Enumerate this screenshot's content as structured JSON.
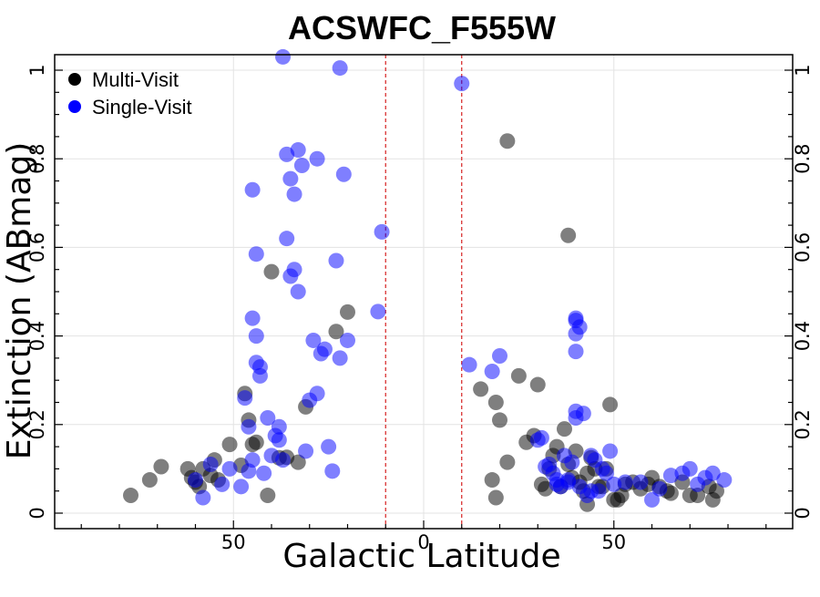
{
  "chart_data": {
    "type": "scatter",
    "title": "ACSWFC_F555W",
    "xlabel": "Galactic Latitude",
    "ylabel": "Extinction (ABmag)",
    "xlim": [
      -97,
      97
    ],
    "ylim": [
      -0.035,
      1.035
    ],
    "x_ticks": [
      -50,
      0,
      50
    ],
    "x_tick_labels": [
      "50",
      "0",
      "50"
    ],
    "y_ticks": [
      0,
      0.2,
      0.4,
      0.6,
      0.8,
      1
    ],
    "y_tick_labels": [
      "0",
      "0.2",
      "0.4",
      "0.6",
      "0.8",
      "1"
    ],
    "grid": true,
    "legend_position": "top-left",
    "reference_lines_x": [
      -10,
      10
    ],
    "reference_line_color": "#d62020",
    "series": [
      {
        "name": "Multi-Visit",
        "color": "#000000",
        "x": [
          -77,
          -72,
          -69,
          -62,
          -61,
          -60,
          -59,
          -58,
          -56,
          -55,
          -54,
          -51,
          -48,
          -47,
          -46,
          -45,
          -44,
          -41,
          -40,
          -38,
          -36,
          -33,
          -31,
          -23,
          -20,
          18,
          19,
          20,
          22,
          25,
          27,
          29,
          30,
          31,
          32,
          33,
          34,
          35,
          36,
          37,
          38,
          39,
          40,
          41,
          42,
          43,
          44,
          45,
          46,
          47,
          48,
          49,
          50,
          51,
          52,
          53,
          55,
          57,
          59,
          60,
          62,
          64,
          65,
          68,
          70,
          72,
          75,
          76,
          77,
          22,
          38,
          19,
          15,
          43
        ],
        "y": [
          0.04,
          0.075,
          0.105,
          0.1,
          0.08,
          0.07,
          0.06,
          0.1,
          0.085,
          0.12,
          0.075,
          0.155,
          0.108,
          0.27,
          0.21,
          0.155,
          0.16,
          0.04,
          0.545,
          0.125,
          0.126,
          0.115,
          0.24,
          0.41,
          0.454,
          0.075,
          0.25,
          0.21,
          0.115,
          0.31,
          0.16,
          0.175,
          0.29,
          0.065,
          0.055,
          0.1,
          0.13,
          0.15,
          0.06,
          0.19,
          0.11,
          0.08,
          0.14,
          0.07,
          0.05,
          0.02,
          0.125,
          0.1,
          0.06,
          0.06,
          0.1,
          0.245,
          0.03,
          0.03,
          0.04,
          0.065,
          0.07,
          0.055,
          0.065,
          0.08,
          0.06,
          0.05,
          0.045,
          0.07,
          0.04,
          0.04,
          0.06,
          0.03,
          0.05,
          0.84,
          0.627,
          0.035,
          0.28,
          0.09
        ]
      },
      {
        "name": "Single-Visit",
        "color": "#0000ff",
        "x": [
          -60,
          -58,
          -56,
          -53,
          -51,
          -48,
          -47,
          -46,
          -45,
          -44,
          -43,
          -42,
          -41,
          -40,
          -39,
          -38,
          -37,
          -36,
          -35,
          -34,
          -33,
          -32,
          -31,
          -30,
          -29,
          -28,
          -27,
          -26,
          -25,
          -24,
          -23,
          -22,
          -21,
          -20,
          -12,
          -11,
          12,
          18,
          20,
          31,
          33,
          34,
          35,
          36,
          37,
          38,
          39,
          40,
          41,
          42,
          43,
          44,
          45,
          46,
          47,
          48,
          49,
          50,
          53,
          57,
          60,
          62,
          65,
          68,
          70,
          72,
          74,
          76,
          79,
          10,
          40,
          40,
          40,
          40,
          40,
          -37,
          -22,
          -45,
          -44,
          -36,
          -34,
          -33,
          -28,
          -35,
          -46,
          -45,
          -44,
          -43,
          -38,
          30,
          32,
          35,
          38,
          41,
          44
        ],
        "y": [
          0.075,
          0.035,
          0.11,
          0.065,
          0.1,
          0.06,
          0.26,
          0.195,
          0.12,
          0.34,
          0.31,
          0.09,
          0.215,
          0.13,
          0.175,
          0.195,
          0.12,
          0.81,
          0.755,
          0.72,
          0.82,
          0.785,
          0.14,
          0.255,
          0.39,
          0.27,
          0.36,
          0.37,
          0.15,
          0.095,
          0.57,
          0.35,
          0.765,
          0.39,
          0.455,
          0.635,
          0.335,
          0.32,
          0.355,
          0.17,
          0.11,
          0.09,
          0.065,
          0.06,
          0.13,
          0.075,
          0.115,
          0.44,
          0.42,
          0.225,
          0.04,
          0.13,
          0.12,
          0.05,
          0.1,
          0.09,
          0.14,
          0.065,
          0.07,
          0.07,
          0.03,
          0.055,
          0.085,
          0.09,
          0.1,
          0.065,
          0.08,
          0.09,
          0.075,
          0.97,
          0.435,
          0.405,
          0.365,
          0.23,
          0.215,
          1.03,
          1.005,
          0.73,
          0.585,
          0.62,
          0.55,
          0.5,
          0.8,
          0.535,
          0.095,
          0.44,
          0.4,
          0.33,
          0.165,
          0.165,
          0.105,
          0.075,
          0.07,
          0.06,
          0.05
        ]
      }
    ]
  }
}
